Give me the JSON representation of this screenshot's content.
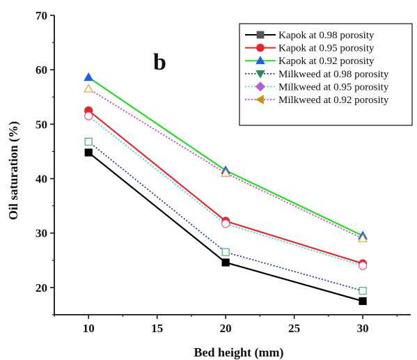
{
  "chart_data": {
    "type": "line",
    "panel_label": "b",
    "xlabel": "Bed height (mm)",
    "ylabel": "Oil saturation (%)",
    "xlim": [
      7.5,
      33.5
    ],
    "ylim": [
      15,
      70
    ],
    "xticks": [
      10,
      15,
      20,
      25,
      30
    ],
    "yticks": [
      20,
      30,
      40,
      50,
      60,
      70
    ],
    "grid": false,
    "legend_position": "top-right",
    "x": [
      10,
      20,
      30
    ],
    "series": [
      {
        "name": "Kapok at 0.98 porosity",
        "values": [
          44.8,
          24.6,
          17.5
        ],
        "color": "#000000",
        "line": "solid",
        "marker": "square",
        "filled": true
      },
      {
        "name": "Kapok at 0.95 porosity",
        "values": [
          52.5,
          32.2,
          24.4
        ],
        "color": "#e8262a",
        "line": "solid",
        "marker": "circle",
        "filled": true
      },
      {
        "name": "Kapok at 0.92 porosity",
        "values": [
          58.6,
          41.5,
          29.5
        ],
        "color": "#22dd22",
        "marker_color": "#1f5fe0",
        "line": "solid",
        "marker": "triangle-up",
        "filled": true
      },
      {
        "name": "Milkweed at 0.98 porosity",
        "values": [
          46.8,
          26.5,
          19.4
        ],
        "color": "#2233bb",
        "marker_color": "#3cb371",
        "line": "dotted",
        "marker": "square",
        "filled": false
      },
      {
        "name": "Milkweed at 0.95 porosity",
        "values": [
          51.5,
          31.7,
          24.0
        ],
        "color": "#33d6d6",
        "marker_color": "#e8559b",
        "line": "dotted",
        "marker": "circle",
        "filled": false
      },
      {
        "name": "Milkweed at 0.92 porosity",
        "values": [
          56.5,
          41.0,
          29.0
        ],
        "color": "#d633c4",
        "marker_color": "#e0a030",
        "line": "dotted",
        "marker": "triangle-up",
        "filled": false
      }
    ],
    "legend_markers": [
      "square",
      "circle",
      "triangle-up",
      "triangle-down",
      "diamond",
      "triangle-left"
    ],
    "legend_marker_colors": [
      "#555555",
      "#e8262a",
      "#1f5fe0",
      "#2e8b57",
      "#b25fd6",
      "#c8920f"
    ]
  }
}
